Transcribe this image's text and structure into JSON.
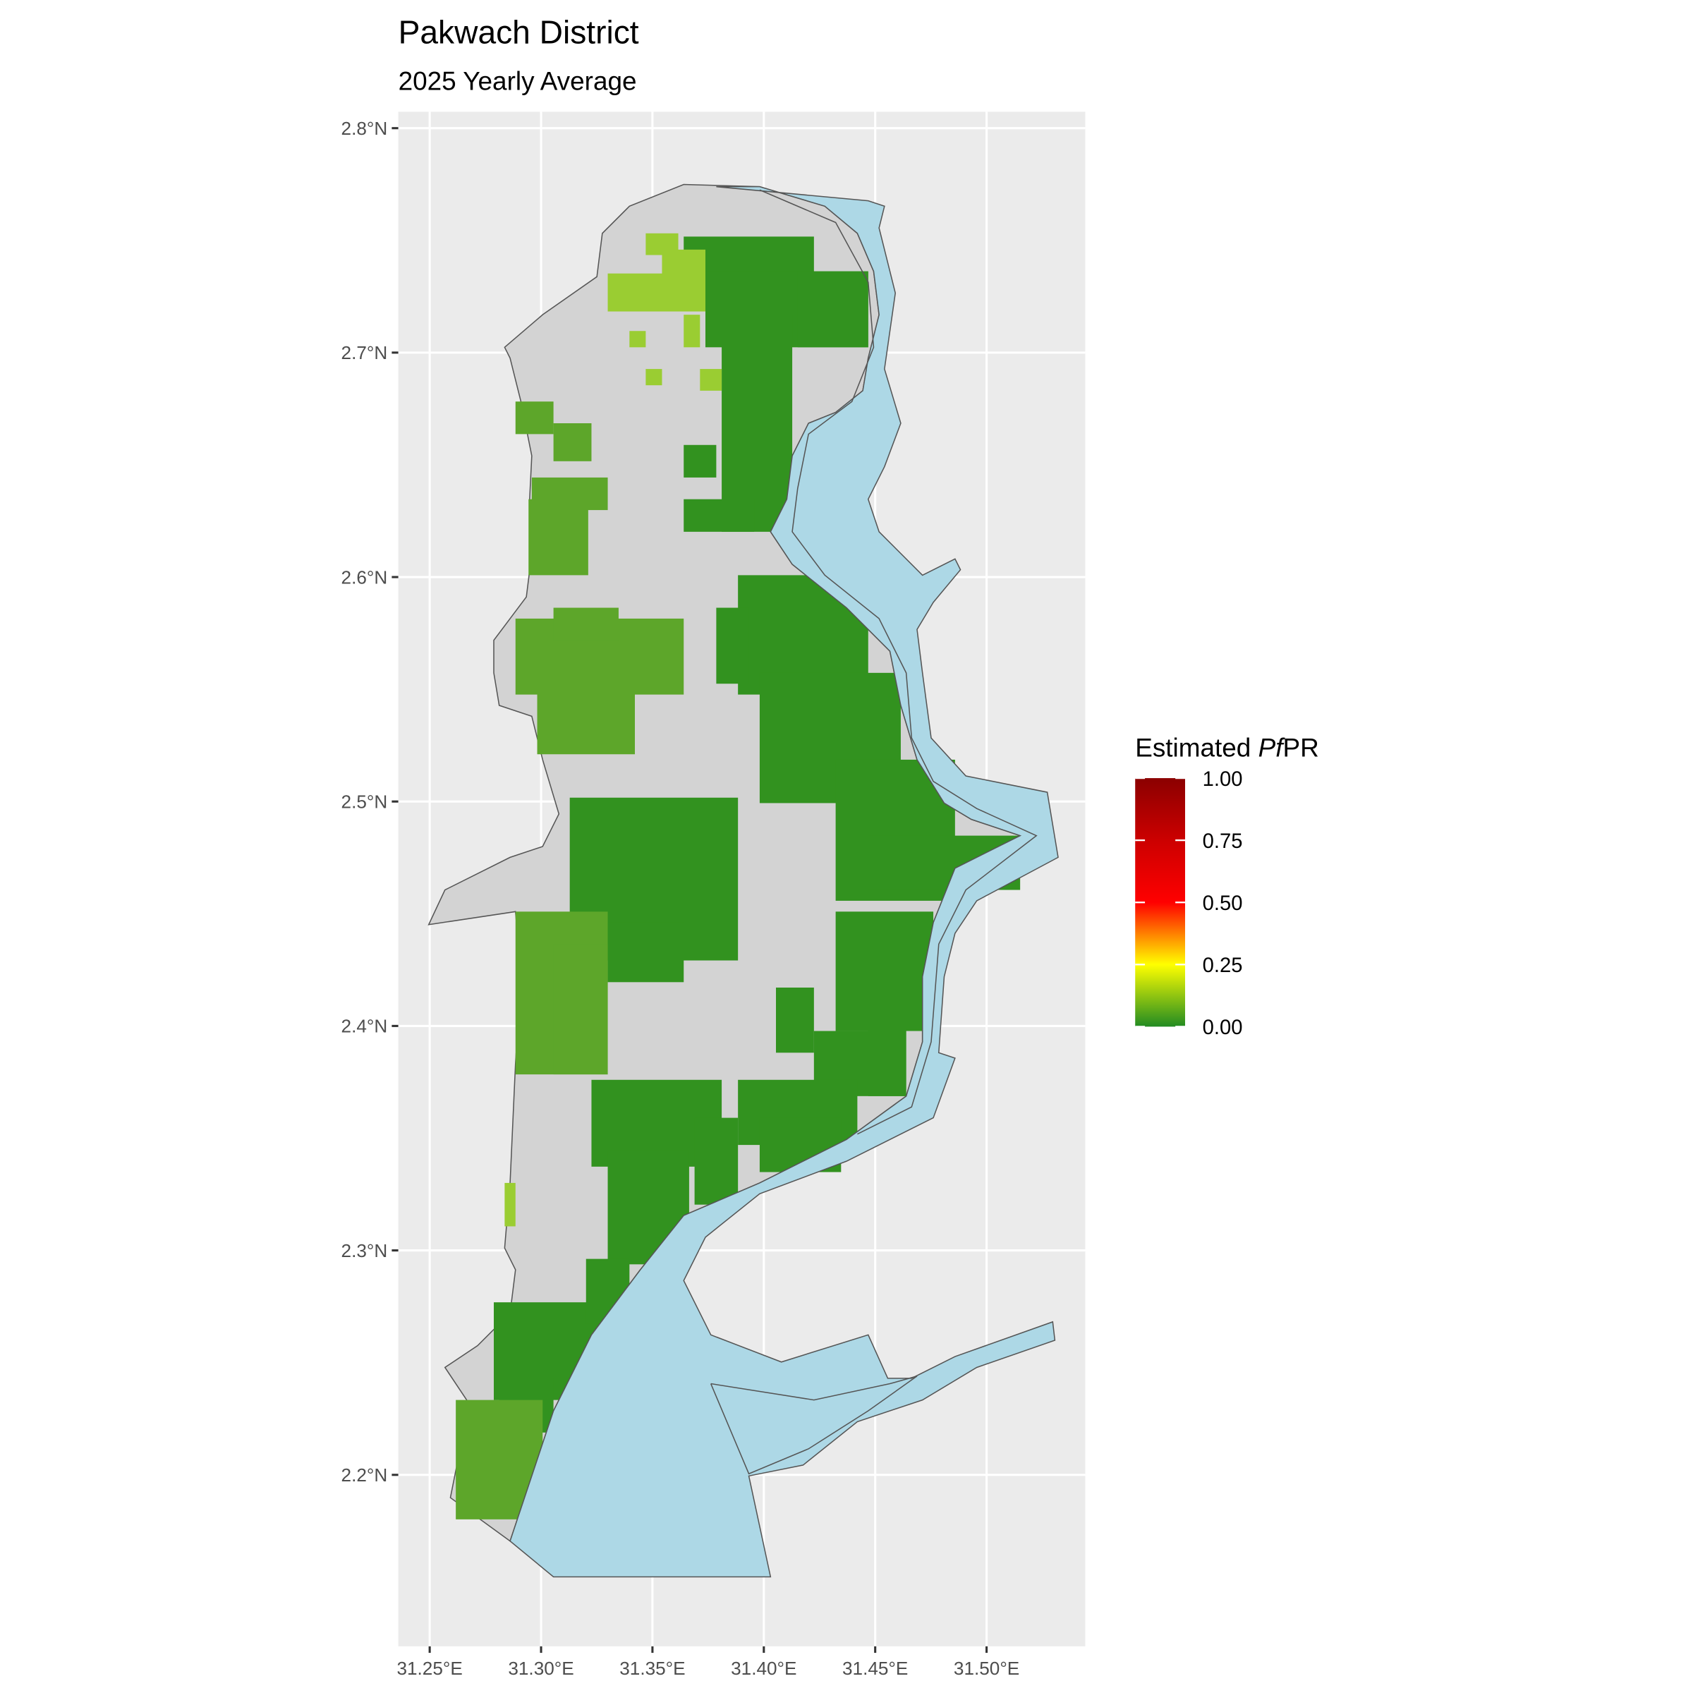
{
  "chart_data": {
    "type": "map",
    "title": "Pakwach District",
    "subtitle": "2025 Yearly Average",
    "xlim": [
      31.2359,
      31.5443
    ],
    "ylim": [
      2.1236,
      2.8073
    ],
    "xticks": [
      {
        "value": 31.25,
        "label": "31.25°E"
      },
      {
        "value": 31.3,
        "label": "31.30°E"
      },
      {
        "value": 31.35,
        "label": "31.35°E"
      },
      {
        "value": 31.4,
        "label": "31.40°E"
      },
      {
        "value": 31.45,
        "label": "31.45°E"
      },
      {
        "value": 31.5,
        "label": "31.50°E"
      }
    ],
    "yticks": [
      {
        "value": 2.2,
        "label": "2.2°N"
      },
      {
        "value": 2.3,
        "label": "2.3°N"
      },
      {
        "value": 2.4,
        "label": "2.4°N"
      },
      {
        "value": 2.5,
        "label": "2.5°N"
      },
      {
        "value": 2.6,
        "label": "2.6°N"
      },
      {
        "value": 2.7,
        "label": "2.7°N"
      },
      {
        "value": 2.8,
        "label": "2.8°N"
      }
    ],
    "grid": true,
    "legend": {
      "title": {
        "text": "Estimated ",
        "italic": "Pf",
        "suffix": "PR"
      },
      "lim": [
        0,
        1
      ],
      "ticks": [
        {
          "value": 0,
          "label": "0.00"
        },
        {
          "value": 0.25,
          "label": "0.25"
        },
        {
          "value": 0.5,
          "label": "0.50"
        },
        {
          "value": 0.75,
          "label": "0.75"
        },
        {
          "value": 1,
          "label": "1.00"
        }
      ],
      "colors": [
        "#228B22",
        "#FFFF00",
        "#FF0000",
        "#CC0000",
        "#8B0000"
      ]
    }
  }
}
